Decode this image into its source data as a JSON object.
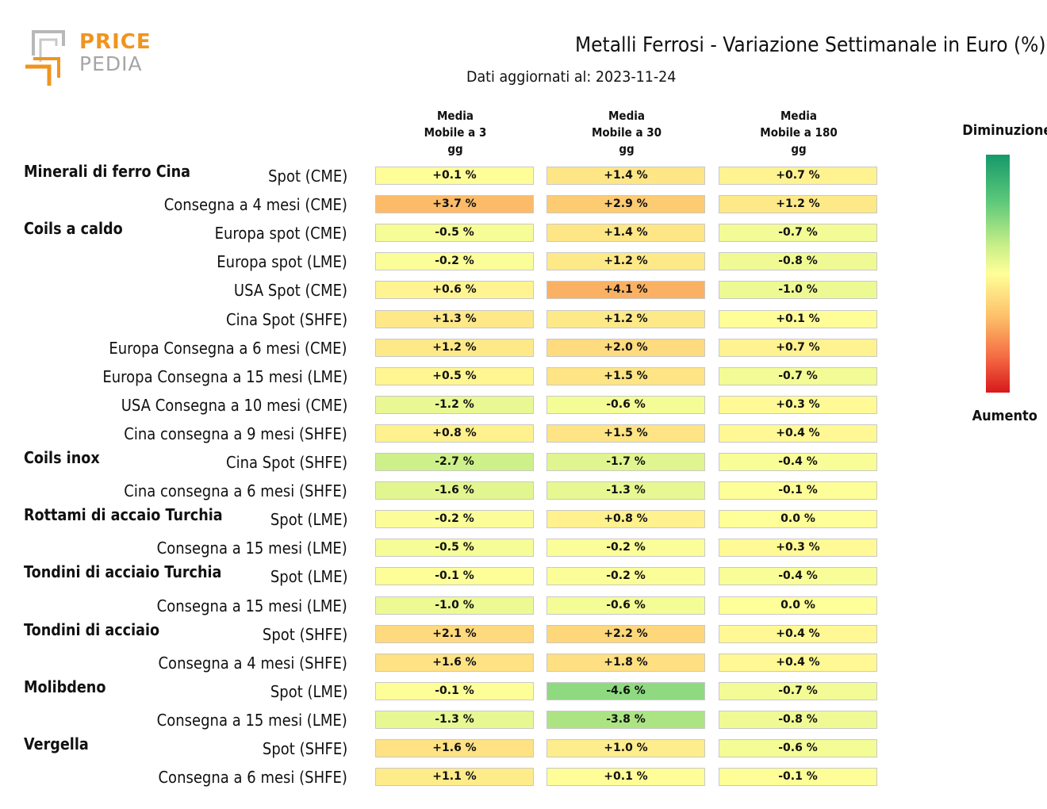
{
  "logo": {
    "line1": "PRICE",
    "line2": "PEDIA"
  },
  "header": {
    "title": "Metalli Ferrosi - Variazione Settimanale in Euro (%)",
    "subtitle": "Dati aggiornati al: 2023-11-24"
  },
  "legend": {
    "top_label": "Diminuzione",
    "bottom_label": "Aumento"
  },
  "chart_data": {
    "type": "heatmap",
    "columns": [
      "Media Mobile a 3 gg",
      "Media Mobile a 30 gg",
      "Media Mobile a 180 gg"
    ],
    "groups": [
      {
        "name": "Minerali di ferro Cina",
        "rows": [
          {
            "label": "Spot (CME)",
            "values": [
              0.1,
              1.4,
              0.7
            ],
            "display": [
              "+0.1 %",
              "+1.4 %",
              "+0.7 %"
            ]
          },
          {
            "label": "Consegna a 4 mesi (CME)",
            "values": [
              3.7,
              2.9,
              1.2
            ],
            "display": [
              "+3.7 %",
              "+2.9 %",
              "+1.2 %"
            ]
          }
        ]
      },
      {
        "name": "Coils a caldo",
        "rows": [
          {
            "label": "Europa spot (CME)",
            "values": [
              -0.5,
              1.4,
              -0.7
            ],
            "display": [
              "-0.5 %",
              "+1.4 %",
              "-0.7 %"
            ]
          },
          {
            "label": "Europa spot (LME)",
            "values": [
              -0.2,
              1.2,
              -0.8
            ],
            "display": [
              "-0.2 %",
              "+1.2 %",
              "-0.8 %"
            ]
          },
          {
            "label": "USA Spot (CME)",
            "values": [
              0.6,
              4.1,
              -1.0
            ],
            "display": [
              "+0.6 %",
              "+4.1 %",
              "-1.0 %"
            ]
          },
          {
            "label": "Cina Spot (SHFE)",
            "values": [
              1.3,
              1.2,
              0.1
            ],
            "display": [
              "+1.3 %",
              "+1.2 %",
              "+0.1 %"
            ]
          },
          {
            "label": "Europa Consegna a 6 mesi (CME)",
            "values": [
              1.2,
              2.0,
              0.7
            ],
            "display": [
              "+1.2 %",
              "+2.0 %",
              "+0.7 %"
            ]
          },
          {
            "label": "Europa Consegna a 15 mesi (LME)",
            "values": [
              0.5,
              1.5,
              -0.7
            ],
            "display": [
              "+0.5 %",
              "+1.5 %",
              "-0.7 %"
            ]
          },
          {
            "label": "USA Consegna a 10 mesi (CME)",
            "values": [
              -1.2,
              -0.6,
              0.3
            ],
            "display": [
              "-1.2 %",
              "-0.6 %",
              "+0.3 %"
            ]
          },
          {
            "label": "Cina consegna a 9 mesi (SHFE)",
            "values": [
              0.8,
              1.5,
              0.4
            ],
            "display": [
              "+0.8 %",
              "+1.5 %",
              "+0.4 %"
            ]
          }
        ]
      },
      {
        "name": "Coils inox",
        "rows": [
          {
            "label": "Cina Spot (SHFE)",
            "values": [
              -2.7,
              -1.7,
              -0.4
            ],
            "display": [
              "-2.7 %",
              "-1.7 %",
              "-0.4 %"
            ]
          },
          {
            "label": "Cina consegna a 6 mesi (SHFE)",
            "values": [
              -1.6,
              -1.3,
              -0.1
            ],
            "display": [
              "-1.6 %",
              "-1.3 %",
              "-0.1 %"
            ]
          }
        ]
      },
      {
        "name": "Rottami di accaio Turchia",
        "rows": [
          {
            "label": "Spot (LME)",
            "values": [
              -0.2,
              0.8,
              0.0
            ],
            "display": [
              "-0.2 %",
              "+0.8 %",
              "0.0 %"
            ]
          },
          {
            "label": "Consegna a 15 mesi (LME)",
            "values": [
              -0.5,
              -0.2,
              0.3
            ],
            "display": [
              "-0.5 %",
              "-0.2 %",
              "+0.3 %"
            ]
          }
        ]
      },
      {
        "name": "Tondini di acciaio Turchia",
        "rows": [
          {
            "label": "Spot (LME)",
            "values": [
              -0.1,
              -0.2,
              -0.4
            ],
            "display": [
              "-0.1 %",
              "-0.2 %",
              "-0.4 %"
            ]
          },
          {
            "label": "Consegna a 15 mesi (LME)",
            "values": [
              -1.0,
              -0.6,
              0.0
            ],
            "display": [
              "-1.0 %",
              "-0.6 %",
              "0.0 %"
            ]
          }
        ]
      },
      {
        "name": "Tondini di acciaio",
        "rows": [
          {
            "label": "Spot (SHFE)",
            "values": [
              2.1,
              2.2,
              0.4
            ],
            "display": [
              "+2.1 %",
              "+2.2 %",
              "+0.4 %"
            ]
          },
          {
            "label": "Consegna a 4 mesi (SHFE)",
            "values": [
              1.6,
              1.8,
              0.4
            ],
            "display": [
              "+1.6 %",
              "+1.8 %",
              "+0.4 %"
            ]
          }
        ]
      },
      {
        "name": "Molibdeno",
        "rows": [
          {
            "label": "Spot (LME)",
            "values": [
              -0.1,
              -4.6,
              -0.7
            ],
            "display": [
              "-0.1 %",
              "-4.6 %",
              "-0.7 %"
            ]
          },
          {
            "label": "Consegna a 15 mesi (LME)",
            "values": [
              -1.3,
              -3.8,
              -0.8
            ],
            "display": [
              "-1.3 %",
              "-3.8 %",
              "-0.8 %"
            ]
          }
        ]
      },
      {
        "name": "Vergella",
        "rows": [
          {
            "label": "Spot (SHFE)",
            "values": [
              1.6,
              1.0,
              -0.6
            ],
            "display": [
              "+1.6 %",
              "+1.0 %",
              "-0.6 %"
            ]
          },
          {
            "label": "Consegna a 6 mesi (SHFE)",
            "values": [
              1.1,
              0.1,
              -0.1
            ],
            "display": [
              "+1.1 %",
              "+0.1 %",
              "-0.1 %"
            ]
          }
        ]
      }
    ],
    "color_scale": {
      "negative": "#16996a",
      "neutral": "#ffff99",
      "positive": "#d7191c"
    }
  }
}
